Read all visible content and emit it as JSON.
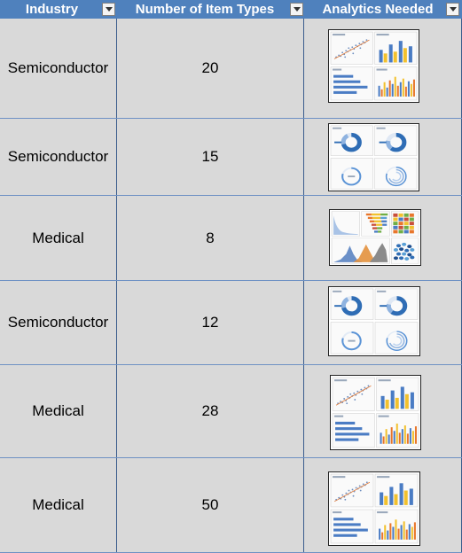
{
  "table": {
    "headers": [
      {
        "label": "Industry"
      },
      {
        "label": "Number of Item Types"
      },
      {
        "label": "Analytics Needed"
      }
    ],
    "rows": [
      {
        "industry": "Semiconductor",
        "count": "20",
        "thumbnail": "dashboard-charts-thumbnail"
      },
      {
        "industry": "Semiconductor",
        "count": "15",
        "thumbnail": "donut-gauges-thumbnail"
      },
      {
        "industry": "Medical",
        "count": "8",
        "thumbnail": "area-heatmap-thumbnail"
      },
      {
        "industry": "Semiconductor",
        "count": "12",
        "thumbnail": "donut-gauges-thumbnail"
      },
      {
        "industry": "Medical",
        "count": "28",
        "thumbnail": "dashboard-charts-thumbnail"
      },
      {
        "industry": "Medical",
        "count": "50",
        "thumbnail": "dashboard-charts-thumbnail"
      }
    ]
  },
  "colors": {
    "header_bg": "#4f81bd",
    "cell_bg": "#d9d9d9",
    "grid": "#6e91c4",
    "chart_blue": "#4a7cc4",
    "chart_orange": "#e8762b",
    "chart_yellow": "#f2c12e"
  }
}
